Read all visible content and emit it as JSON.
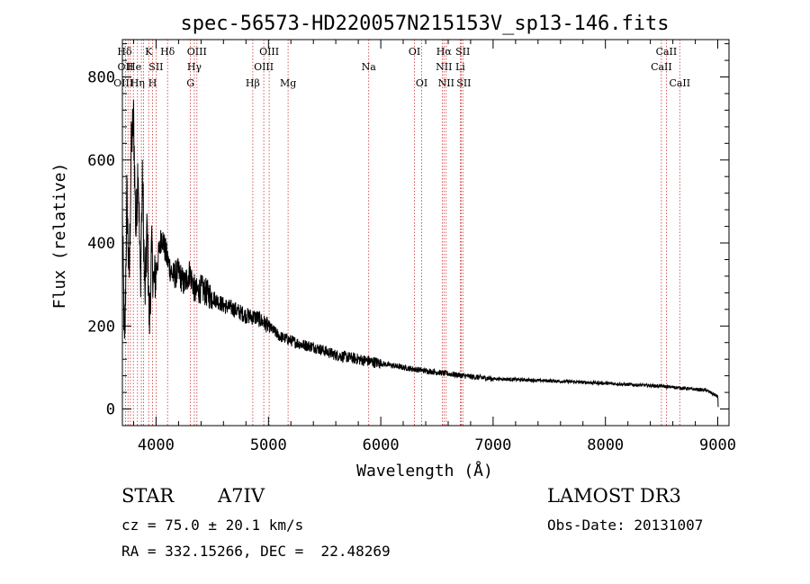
{
  "chart_data": {
    "type": "line",
    "title": "spec-56573-HD220057N215153V_sp13-146.fits",
    "xlabel": "Wavelength (Å)",
    "ylabel": "Flux (relative)",
    "xlim": [
      3700,
      9100
    ],
    "ylim": [
      -40,
      890
    ],
    "xticks": [
      4000,
      5000,
      6000,
      7000,
      8000,
      9000
    ],
    "yticks": [
      0,
      200,
      400,
      600,
      800
    ],
    "x_tick_labels": [
      "4000",
      "5000",
      "6000",
      "7000",
      "8000",
      "9000"
    ],
    "y_tick_labels": [
      "0",
      "200",
      "400",
      "600",
      "800"
    ],
    "series": [
      {
        "name": "spectrum",
        "anchor_points": [
          [
            3700,
            460
          ],
          [
            3720,
            120
          ],
          [
            3740,
            520
          ],
          [
            3760,
            300
          ],
          [
            3780,
            640
          ],
          [
            3800,
            700
          ],
          [
            3820,
            420
          ],
          [
            3840,
            600
          ],
          [
            3860,
            300
          ],
          [
            3880,
            560
          ],
          [
            3900,
            260
          ],
          [
            3920,
            440
          ],
          [
            3940,
            200
          ],
          [
            3960,
            380
          ],
          [
            3980,
            300
          ],
          [
            4000,
            330
          ],
          [
            4050,
            420
          ],
          [
            4100,
            360
          ],
          [
            4150,
            320
          ],
          [
            4200,
            330
          ],
          [
            4250,
            300
          ],
          [
            4300,
            330
          ],
          [
            4350,
            280
          ],
          [
            4400,
            290
          ],
          [
            4500,
            270
          ],
          [
            4600,
            250
          ],
          [
            4700,
            240
          ],
          [
            4800,
            225
          ],
          [
            4900,
            220
          ],
          [
            5000,
            200
          ],
          [
            5100,
            175
          ],
          [
            5200,
            165
          ],
          [
            5300,
            155
          ],
          [
            5400,
            150
          ],
          [
            5500,
            140
          ],
          [
            5600,
            130
          ],
          [
            5700,
            125
          ],
          [
            5800,
            120
          ],
          [
            5900,
            115
          ],
          [
            6000,
            110
          ],
          [
            6200,
            100
          ],
          [
            6400,
            92
          ],
          [
            6600,
            85
          ],
          [
            6800,
            78
          ],
          [
            7000,
            73
          ],
          [
            7500,
            68
          ],
          [
            8000,
            62
          ],
          [
            8500,
            55
          ],
          [
            8900,
            45
          ],
          [
            9000,
            30
          ],
          [
            9005,
            0
          ]
        ]
      }
    ],
    "line_labels": [
      {
        "label": "Hδ",
        "row": 1,
        "wavelength": 3720
      },
      {
        "label": "OII",
        "row": 2,
        "wavelength": 3727
      },
      {
        "label": "OIII",
        "row": 3,
        "wavelength": 3710
      },
      {
        "label": "He",
        "row": 2,
        "wavelength": 3805
      },
      {
        "label": "Hη",
        "row": 3,
        "wavelength": 3835
      },
      {
        "label": "K",
        "row": 1,
        "wavelength": 3934
      },
      {
        "label": "SII",
        "row": 2,
        "wavelength": 4000
      },
      {
        "label": "H",
        "row": 3,
        "wavelength": 3968
      },
      {
        "label": "Hδ",
        "row": 1,
        "wavelength": 4102
      },
      {
        "label": "OIII",
        "row": 1,
        "wavelength": 4363
      },
      {
        "label": "Hγ",
        "row": 2,
        "wavelength": 4340
      },
      {
        "label": "G",
        "row": 3,
        "wavelength": 4306
      },
      {
        "label": "OIII",
        "row": 1,
        "wavelength": 5007
      },
      {
        "label": "OIII",
        "row": 2,
        "wavelength": 4959
      },
      {
        "label": "Hβ",
        "row": 3,
        "wavelength": 4861
      },
      {
        "label": "Mg",
        "row": 3,
        "wavelength": 5175
      },
      {
        "label": "Na",
        "row": 2,
        "wavelength": 5893
      },
      {
        "label": "OI",
        "row": 1,
        "wavelength": 6300
      },
      {
        "label": "OI",
        "row": 3,
        "wavelength": 6364
      },
      {
        "label": "Hα",
        "row": 1,
        "wavelength": 6563
      },
      {
        "label": "SII",
        "row": 1,
        "wavelength": 6731
      },
      {
        "label": "NII",
        "row": 2,
        "wavelength": 6563
      },
      {
        "label": "Li",
        "row": 2,
        "wavelength": 6708
      },
      {
        "label": "NII",
        "row": 3,
        "wavelength": 6583
      },
      {
        "label": "SII",
        "row": 3,
        "wavelength": 6740
      },
      {
        "label": "CaII",
        "row": 1,
        "wavelength": 8542
      },
      {
        "label": "CaII",
        "row": 2,
        "wavelength": 8498
      },
      {
        "label": "CaII",
        "row": 3,
        "wavelength": 8662
      }
    ],
    "line_wavelengths": [
      3727,
      3750,
      3771,
      3798,
      3835,
      3869,
      3889,
      3934,
      3968,
      4000,
      4102,
      4306,
      4340,
      4363,
      4861,
      4959,
      5007,
      5175,
      5893,
      6300,
      6364,
      6548,
      6563,
      6583,
      6708,
      6717,
      6731,
      8498,
      8542,
      8662
    ],
    "line_color": "#cc3333",
    "spectrum_color": "#000000"
  },
  "info": {
    "object_class": "STAR",
    "subclass": "A7IV",
    "redshift": "cz = 75.0 ± 20.1 km/s",
    "coords": "RA = 332.15266, DEC =  22.48269",
    "survey": "LAMOST DR3",
    "obs_date": "Obs-Date: 20131007"
  }
}
